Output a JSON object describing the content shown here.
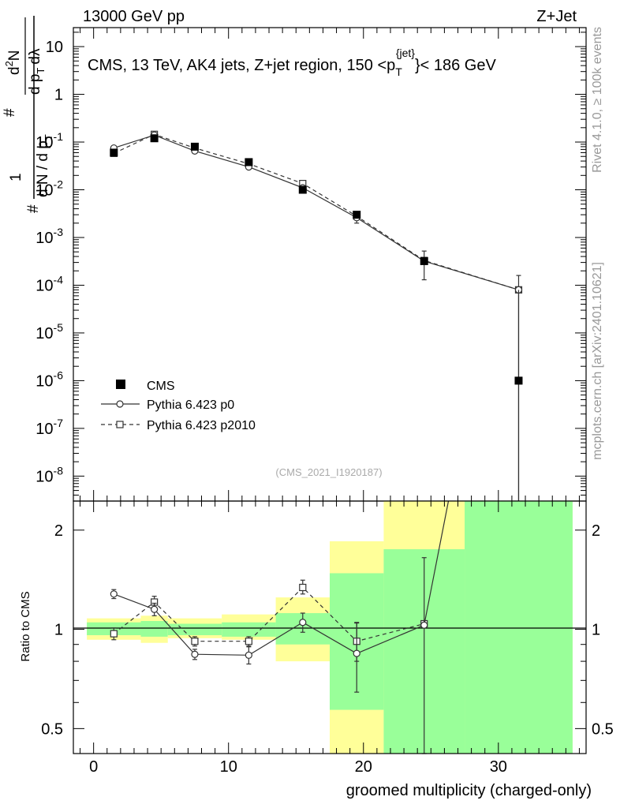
{
  "header": {
    "left_label": "13000 GeV pp",
    "right_label": "Z+Jet"
  },
  "side_labels": {
    "rivet": "Rivet 4.1.0, ≥ 100k events",
    "mcplots": "mcplots.cern.ch [arXiv:2401.10621]"
  },
  "chart_data": [
    {
      "type": "scatter",
      "panel": "main",
      "title": "CMS, 13 TeV, AK4 jets, Z+jet region, 150 <p_T^{jet}< 186 GeV",
      "title_parts": {
        "prefix": "CMS, 13 TeV, AK4 jets, Z+jet region, 150 <p",
        "sub": "T",
        "sup": "{jet}",
        "suffix": "}< 186 GeV"
      },
      "ylabel_parts": [
        "#",
        "1",
        "d N / d p",
        "T",
        "#",
        "d",
        "N",
        "2",
        "d p",
        "T",
        "dλ"
      ],
      "yscale": "log",
      "ylim": [
        3e-09,
        25
      ],
      "xlim": [
        -1.5,
        36.5
      ],
      "y_ticks": [
        {
          "value": 10,
          "label": "10"
        },
        {
          "value": 1,
          "label": "1"
        },
        {
          "value": 0.1,
          "label": "10",
          "exp": "-1"
        },
        {
          "value": 0.01,
          "label": "10",
          "exp": "-2"
        },
        {
          "value": 0.001,
          "label": "10",
          "exp": "-3"
        },
        {
          "value": 0.0001,
          "label": "10",
          "exp": "-4"
        },
        {
          "value": 1e-05,
          "label": "10",
          "exp": "-5"
        },
        {
          "value": 1e-06,
          "label": "10",
          "exp": "-6"
        },
        {
          "value": 1e-07,
          "label": "10",
          "exp": "-7"
        },
        {
          "value": 1e-08,
          "label": "10",
          "exp": "-8"
        }
      ],
      "watermark": "(CMS_2021_I1920187)",
      "series": [
        {
          "name": "CMS",
          "style": "filled-square",
          "x": [
            1.5,
            4.5,
            7.5,
            11.5,
            15.5,
            19.5,
            24.5,
            31.5
          ],
          "y": [
            0.06,
            0.12,
            0.08,
            0.038,
            0.01,
            0.003,
            0.00032,
            1e-06
          ]
        },
        {
          "name": "Pythia 6.423 p0",
          "style": "open-circle-solid",
          "x": [
            1.5,
            4.5,
            7.5,
            11.5,
            15.5,
            19.5,
            24.5,
            31.5
          ],
          "y": [
            0.075,
            0.14,
            0.065,
            0.03,
            0.011,
            0.0026,
            0.00032,
            8e-05
          ],
          "yerr_low": [
            0,
            0,
            0,
            0,
            0,
            0.0006,
            0.00019,
            7.9999e-05
          ],
          "yerr_high": [
            0,
            0,
            0,
            0,
            0,
            0.0006,
            0.0002,
            8e-05
          ]
        },
        {
          "name": "Pythia 6.423 p2010",
          "style": "open-square-dashed",
          "x": [
            1.5,
            4.5,
            7.5,
            11.5,
            15.5,
            19.5,
            24.5,
            31.5
          ],
          "y": [
            0.058,
            0.145,
            0.075,
            0.035,
            0.0135,
            0.0028,
            0.00033,
            8e-05
          ],
          "yerr_low": [
            0,
            0,
            0,
            0,
            0,
            0,
            0,
            0
          ],
          "yerr_high": [
            0,
            0,
            0,
            0,
            0,
            0,
            0,
            0
          ]
        }
      ],
      "legend": [
        {
          "label": "CMS",
          "style": "filled-square"
        },
        {
          "label": "Pythia 6.423 p0",
          "style": "open-circle-solid"
        },
        {
          "label": "Pythia 6.423 p2010",
          "style": "open-square-dashed"
        }
      ]
    },
    {
      "type": "line",
      "panel": "ratio",
      "ylabel": "Ratio to CMS",
      "xlabel": "groomed multiplicity (charged-only)",
      "yscale": "log",
      "ylim": [
        0.42,
        2.45
      ],
      "xlim": [
        -1.5,
        36.5
      ],
      "x_ticks": [
        0,
        10,
        20,
        30
      ],
      "y_ticks": [
        {
          "value": 0.5,
          "label": "0.5"
        },
        {
          "value": 1,
          "label": "1"
        },
        {
          "value": 2,
          "label": "2"
        }
      ],
      "bands": [
        {
          "x_low": -0.5,
          "x_high": 3.5,
          "yellow": [
            0.93,
            1.08
          ],
          "green": [
            0.96,
            1.05
          ]
        },
        {
          "x_low": 3.5,
          "x_high": 5.5,
          "yellow": [
            0.91,
            1.1
          ],
          "green": [
            0.95,
            1.06
          ]
        },
        {
          "x_low": 5.5,
          "x_high": 9.5,
          "yellow": [
            0.94,
            1.08
          ],
          "green": [
            0.96,
            1.04
          ]
        },
        {
          "x_low": 9.5,
          "x_high": 13.5,
          "yellow": [
            0.93,
            1.11
          ],
          "green": [
            0.95,
            1.05
          ]
        },
        {
          "x_low": 13.5,
          "x_high": 17.5,
          "yellow": [
            0.8,
            1.25
          ],
          "green": [
            0.9,
            1.12
          ]
        },
        {
          "x_low": 17.5,
          "x_high": 21.5,
          "yellow": [
            0.42,
            1.85
          ],
          "green": [
            0.57,
            1.48
          ]
        },
        {
          "x_low": 21.5,
          "x_high": 27.5,
          "yellow": [
            0.42,
            2.45
          ],
          "green": [
            0.42,
            1.75
          ]
        },
        {
          "x_low": 27.5,
          "x_high": 35.5,
          "yellow": [
            0.42,
            2.45
          ],
          "green": [
            0.42,
            2.45
          ]
        }
      ],
      "series": [
        {
          "name": "Pythia 6.423 p0",
          "style": "open-circle-solid",
          "x": [
            1.5,
            4.5,
            7.5,
            11.5,
            15.5,
            19.5,
            24.5,
            26.3
          ],
          "y": [
            1.28,
            1.15,
            0.84,
            0.835,
            1.05,
            0.845,
            1.03,
            2.45
          ],
          "yerr_low": [
            0.04,
            0.05,
            0.03,
            0.05,
            0.07,
            0.2,
            0.63,
            0
          ],
          "yerr_high": [
            0.04,
            0.05,
            0.03,
            0.05,
            0.07,
            0.2,
            0.62,
            0
          ]
        },
        {
          "name": "Pythia 6.423 p2010",
          "style": "open-square-dashed",
          "x": [
            1.5,
            4.5,
            7.5,
            11.5,
            15.5,
            19.5,
            24.5
          ],
          "y": [
            0.97,
            1.21,
            0.92,
            0.92,
            1.34,
            0.92,
            1.04
          ],
          "yerr_low": [
            0.04,
            0.05,
            0.03,
            0.03,
            0.06,
            0.12,
            0
          ],
          "yerr_high": [
            0.04,
            0.05,
            0.03,
            0.03,
            0.07,
            0.13,
            0
          ]
        }
      ]
    }
  ]
}
